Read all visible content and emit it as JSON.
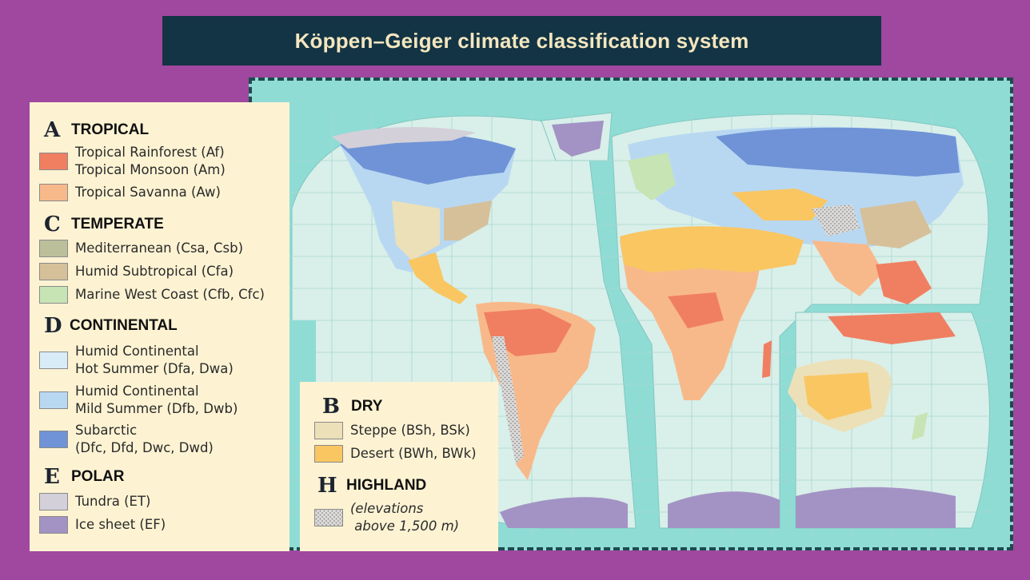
{
  "title": "Köppen–Geiger climate classification system",
  "colors": {
    "ocean": "#8fdcd5",
    "land_base": "#d9efe9",
    "tropical_rainforest": "#f07f62",
    "tropical_savanna": "#f8b98a",
    "mediterranean": "#bcc09a",
    "humid_subtropical": "#d6c09a",
    "marine_west_coast": "#c7e4b4",
    "humid_continental_hot": "#d8ecf7",
    "humid_continental_mild": "#b8d8f2",
    "subarctic": "#6f93d6",
    "tundra": "#d3d0d9",
    "ice_sheet": "#a393c4",
    "steppe": "#ece0b8",
    "desert": "#f9c662",
    "highland": "#d8d6d6"
  },
  "legend": {
    "tropical": {
      "letter": "A",
      "name": "TROPICAL",
      "items": [
        {
          "lines": [
            "Tropical Rainforest (Af)",
            "Tropical Monsoon (Am)"
          ],
          "swatch": "tropical_rainforest"
        },
        {
          "lines": [
            "Tropical Savanna (Aw)"
          ],
          "swatch": "tropical_savanna"
        }
      ]
    },
    "temperate": {
      "letter": "C",
      "name": "TEMPERATE",
      "items": [
        {
          "lines": [
            "Mediterranean (Csa, Csb)"
          ]
        },
        {
          "lines": [
            "Humid Subtropical (Cfa)"
          ]
        },
        {
          "lines": [
            "Marine West Coast (Cfb, Cfc)"
          ]
        }
      ]
    },
    "continental": {
      "letter": "D",
      "name": "CONTINENTAL",
      "items": [
        {
          "lines": [
            "Humid Continental",
            "Hot Summer (Dfa, Dwa)"
          ]
        },
        {
          "lines": [
            "Humid Continental",
            "Mild Summer (Dfb, Dwb)"
          ]
        },
        {
          "lines": [
            "Subarctic",
            "(Dfc, Dfd, Dwc, Dwd)"
          ]
        }
      ]
    },
    "polar": {
      "letter": "E",
      "name": "POLAR",
      "items": [
        {
          "lines": [
            "Tundra (ET)"
          ]
        },
        {
          "lines": [
            "Ice sheet (EF)"
          ]
        }
      ]
    },
    "dry": {
      "letter": "B",
      "name": "DRY",
      "items": [
        {
          "lines": [
            "Steppe (BSh, BSk)"
          ]
        },
        {
          "lines": [
            "Desert (BWh, BWk)"
          ]
        }
      ]
    },
    "highland": {
      "letter": "H",
      "name": "HIGHLAND",
      "items": [
        {
          "lines": [
            "(elevations",
            " above 1,500 m)"
          ]
        }
      ]
    }
  }
}
